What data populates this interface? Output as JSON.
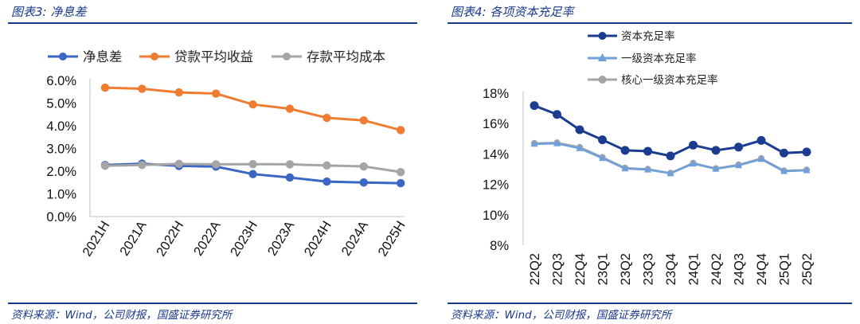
{
  "left": {
    "title": "图表3:  净息差",
    "source": "资料来源：Wind，公司财报，国盛证券研究所"
  },
  "right": {
    "title": "图表4:  各项资本充足率",
    "source": "资料来源：Wind，公司财报，国盛证券研究所"
  },
  "chart_data": [
    {
      "type": "line",
      "title": "",
      "categories": [
        "2021H",
        "2021A",
        "2022H",
        "2022A",
        "2023H",
        "2023A",
        "2024H",
        "2024A",
        "2025H"
      ],
      "series": [
        {
          "name": "净息差",
          "color": "#3a66c4",
          "values": [
            2.27,
            2.33,
            2.23,
            2.2,
            1.87,
            1.72,
            1.54,
            1.5,
            1.47
          ]
        },
        {
          "name": "贷款平均收益",
          "color": "#ee7d31",
          "values": [
            5.68,
            5.63,
            5.47,
            5.42,
            4.94,
            4.75,
            4.35,
            4.24,
            3.81
          ]
        },
        {
          "name": "存款平均成本",
          "color": "#a5a5a5",
          "values": [
            2.24,
            2.27,
            2.32,
            2.3,
            2.31,
            2.3,
            2.25,
            2.21,
            1.96
          ]
        }
      ],
      "yticks": [
        "6.0%",
        "5.0%",
        "4.0%",
        "3.0%",
        "2.0%",
        "1.0%",
        "0.0%"
      ],
      "ylim": [
        0,
        6
      ],
      "grid": false,
      "legend": "top"
    },
    {
      "type": "line",
      "title": "",
      "categories": [
        "22Q2",
        "22Q3",
        "22Q4",
        "23Q1",
        "23Q2",
        "23Q3",
        "23Q4",
        "24Q1",
        "24Q2",
        "24Q3",
        "24Q4",
        "25Q1",
        "25Q2"
      ],
      "series": [
        {
          "name": "资本充足率",
          "color": "#1b3d8f",
          "marker": "circle",
          "values": [
            17.18,
            16.6,
            15.59,
            14.93,
            14.24,
            14.18,
            13.87,
            14.58,
            14.24,
            14.45,
            14.89,
            14.06,
            14.13
          ]
        },
        {
          "name": "一级资本充足率",
          "color": "#6fa0d9",
          "marker": "triangle",
          "values": [
            14.66,
            14.69,
            14.37,
            13.72,
            13.04,
            12.97,
            12.72,
            13.36,
            13.02,
            13.25,
            13.66,
            12.86,
            12.92
          ]
        },
        {
          "name": "核心一级资本充足率",
          "color": "#a5a5a5",
          "marker": "circle",
          "values": [
            14.7,
            14.74,
            14.44,
            13.78,
            13.08,
            13.0,
            12.74,
            13.4,
            13.04,
            13.29,
            13.7,
            12.9,
            12.95
          ]
        }
      ],
      "yticks": [
        "18%",
        "16%",
        "14%",
        "12%",
        "10%",
        "8%"
      ],
      "ylim": [
        8,
        18
      ],
      "grid": false,
      "legend": "top-left"
    }
  ]
}
